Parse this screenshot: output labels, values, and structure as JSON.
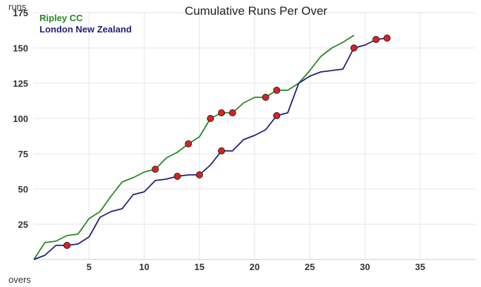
{
  "chart_data": {
    "type": "line",
    "title": "Cumulative Runs Per Over",
    "xlabel": "overs",
    "ylabel": "runs",
    "xlim": [
      0,
      40
    ],
    "ylim": [
      0,
      175
    ],
    "x_ticks": [
      5,
      10,
      15,
      20,
      25,
      30,
      35
    ],
    "y_ticks": [
      25,
      50,
      75,
      100,
      125,
      150,
      175
    ],
    "grid": true,
    "legend": "top-left",
    "series": [
      {
        "name": "Ripley CC",
        "color": "#228822",
        "x": [
          0,
          1,
          2,
          3,
          4,
          5,
          6,
          7,
          8,
          9,
          10,
          11,
          12,
          13,
          14,
          15,
          16,
          17,
          18,
          19,
          20,
          21,
          22,
          23,
          24,
          25,
          26,
          27,
          28,
          29
        ],
        "values": [
          0,
          12,
          13,
          17,
          18,
          29,
          34,
          45,
          55,
          58,
          62,
          64,
          72,
          76,
          82,
          87,
          100,
          104,
          104,
          111,
          115,
          115,
          120,
          120,
          125,
          134,
          144,
          150,
          154,
          159
        ],
        "wicket_overs": [
          11,
          14,
          16,
          17,
          18,
          21,
          22
        ]
      },
      {
        "name": "London New Zealand",
        "color": "#1f1f77",
        "x": [
          0,
          1,
          2,
          3,
          4,
          5,
          6,
          7,
          8,
          9,
          10,
          11,
          12,
          13,
          14,
          15,
          16,
          17,
          18,
          19,
          20,
          21,
          22,
          23,
          24,
          25,
          26,
          27,
          28,
          29,
          30,
          31,
          32
        ],
        "values": [
          0,
          3,
          10,
          10,
          11,
          16,
          30,
          34,
          36,
          46,
          48,
          56,
          57,
          59,
          60,
          60,
          67,
          77,
          77,
          85,
          88,
          92,
          102,
          104,
          125,
          130,
          133,
          134,
          135,
          150,
          152,
          156,
          157
        ],
        "wicket_overs": [
          3,
          13,
          15,
          17,
          22,
          29,
          31,
          32
        ]
      }
    ],
    "marker_color": "#e02020"
  }
}
